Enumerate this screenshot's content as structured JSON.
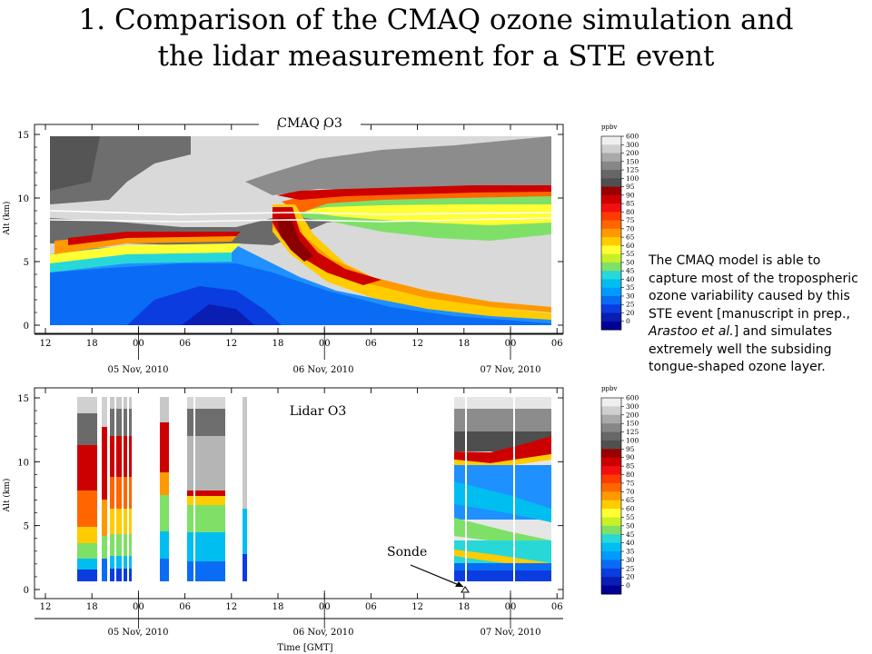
{
  "title": {
    "line1": "1. Comparison of the CMAQ ozone simulation and",
    "line2": "the lidar measurement for a STE event"
  },
  "annotation": {
    "text1": "The CMAQ model is able to capture most of the tropospheric ozone variability caused by this STE event [manuscript in prep., ",
    "authors": "Arastoo et al.",
    "text2": "] and simulates extremely well the subsiding tongue-shaped ozone layer."
  },
  "chart_data": [
    {
      "type": "heatmap",
      "title": "CMAQ O3",
      "ylabel": "Alt (km)",
      "xlabel": "",
      "ylim": [
        0,
        15
      ],
      "yticks": [
        "0",
        "5",
        "10",
        "15"
      ],
      "xticks": [
        "12",
        "18",
        "00",
        "06",
        "12",
        "18",
        "00",
        "06",
        "12",
        "18",
        "00",
        "06"
      ],
      "date_labels": [
        "05 Nov, 2010",
        "06 Nov, 2010",
        "07 Nov, 2010"
      ],
      "colorbar": {
        "unit": "ppbv",
        "levels": [
          "600",
          "300",
          "200",
          "150",
          "125",
          "100",
          "95",
          "90",
          "85",
          "80",
          "75",
          "70",
          "65",
          "60",
          "55",
          "50",
          "45",
          "40",
          "35",
          "30",
          "25",
          "20",
          "0"
        ],
        "colors": [
          "#efefef",
          "#cfcfcf",
          "#a9a9a9",
          "#878787",
          "#676767",
          "#505050",
          "#9a0000",
          "#cd0000",
          "#f01010",
          "#ff3c00",
          "#ff6600",
          "#ff9900",
          "#ffcc00",
          "#ffff33",
          "#c8f028",
          "#7fe068",
          "#28d8d8",
          "#00bef0",
          "#009bff",
          "#0a6cf5",
          "#0b3ce0",
          "#0a1eb4",
          "#000096"
        ]
      }
    },
    {
      "type": "heatmap",
      "title": "Lidar O3",
      "ylabel": "Alt (km)",
      "xlabel": "Time [GMT]",
      "ylim": [
        0,
        15
      ],
      "yticks": [
        "0",
        "5",
        "10",
        "15"
      ],
      "xticks": [
        "12",
        "18",
        "00",
        "06",
        "12",
        "18",
        "00",
        "06",
        "12",
        "18",
        "00",
        "06"
      ],
      "date_labels": [
        "05 Nov, 2010",
        "06 Nov, 2010",
        "07 Nov, 2010"
      ],
      "annotations": [
        "Sonde"
      ],
      "colorbar": {
        "unit": "ppbv",
        "levels": [
          "600",
          "300",
          "200",
          "150",
          "125",
          "100",
          "95",
          "90",
          "85",
          "80",
          "75",
          "70",
          "65",
          "60",
          "55",
          "50",
          "45",
          "40",
          "35",
          "30",
          "25",
          "20",
          "0"
        ]
      }
    }
  ]
}
